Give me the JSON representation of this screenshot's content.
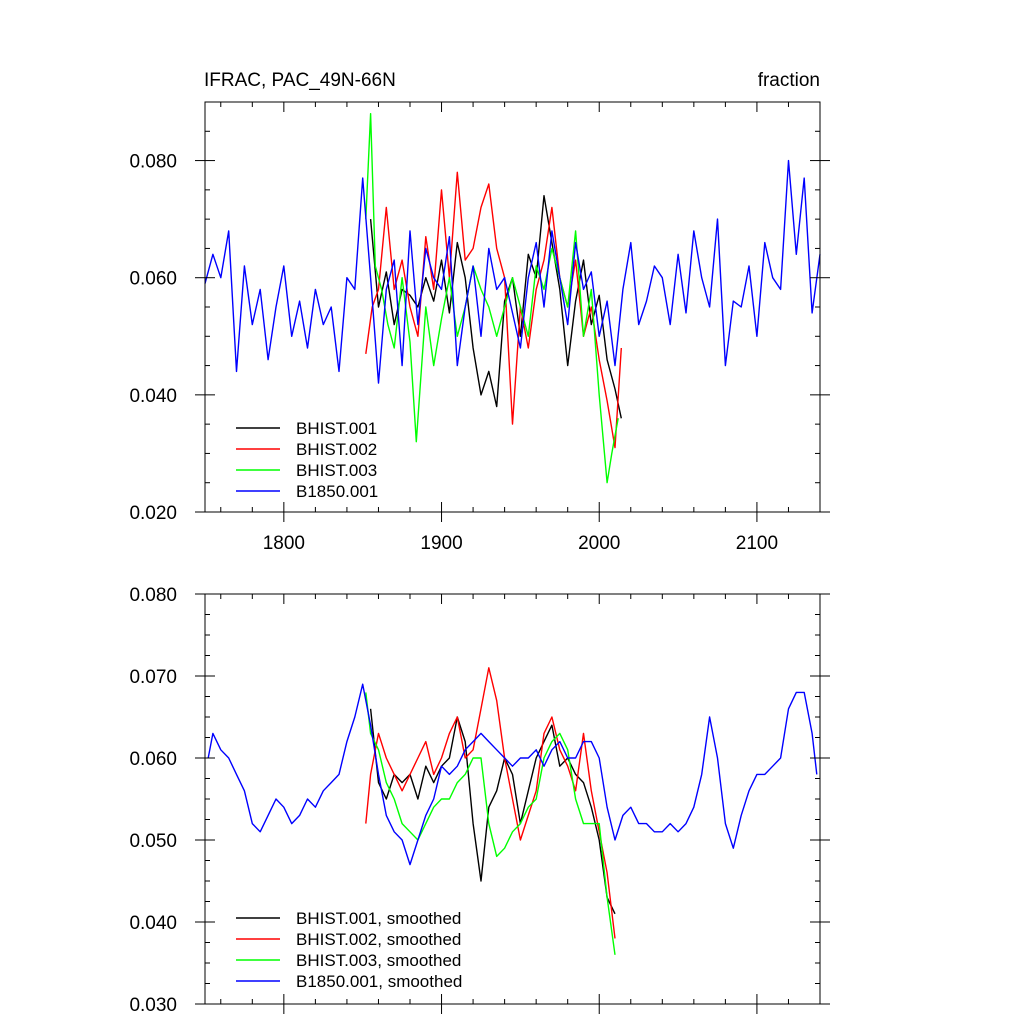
{
  "chart_data": [
    {
      "type": "line",
      "title": "IFRAC, PAC_49N-66N",
      "units": "fraction",
      "xlim": [
        1750,
        2140
      ],
      "ylim": [
        0.02,
        0.09
      ],
      "x_ticks": [
        1800,
        1900,
        2000,
        2100
      ],
      "x_tick_labels": [
        "1800",
        "1900",
        "2000",
        "2100"
      ],
      "y_ticks": [
        0.02,
        0.04,
        0.06,
        0.08
      ],
      "y_tick_labels": [
        "0.020",
        "0.040",
        "0.060",
        "0.080"
      ],
      "legend_position": "bottom-left",
      "series": [
        {
          "name": "BHIST.001",
          "color": "#000000",
          "x": [
            1855,
            1860,
            1865,
            1870,
            1875,
            1880,
            1885,
            1890,
            1895,
            1900,
            1905,
            1910,
            1915,
            1920,
            1925,
            1930,
            1935,
            1940,
            1945,
            1950,
            1955,
            1960,
            1965,
            1970,
            1975,
            1980,
            1985,
            1990,
            1995,
            2000,
            2005,
            2010,
            2014
          ],
          "y": [
            0.07,
            0.055,
            0.061,
            0.052,
            0.058,
            0.057,
            0.055,
            0.06,
            0.056,
            0.063,
            0.054,
            0.066,
            0.06,
            0.048,
            0.04,
            0.044,
            0.038,
            0.056,
            0.06,
            0.05,
            0.064,
            0.06,
            0.074,
            0.066,
            0.058,
            0.045,
            0.056,
            0.063,
            0.052,
            0.057,
            0.046,
            0.041,
            0.036
          ]
        },
        {
          "name": "BHIST.002",
          "color": "#ff0000",
          "x": [
            1852,
            1856,
            1860,
            1865,
            1870,
            1875,
            1880,
            1885,
            1890,
            1895,
            1900,
            1905,
            1910,
            1915,
            1920,
            1925,
            1930,
            1935,
            1940,
            1945,
            1950,
            1955,
            1960,
            1965,
            1970,
            1975,
            1980,
            1985,
            1990,
            1995,
            2000,
            2005,
            2010,
            2014
          ],
          "y": [
            0.047,
            0.055,
            0.058,
            0.072,
            0.058,
            0.063,
            0.055,
            0.05,
            0.067,
            0.058,
            0.075,
            0.06,
            0.078,
            0.063,
            0.065,
            0.072,
            0.076,
            0.065,
            0.06,
            0.035,
            0.055,
            0.048,
            0.058,
            0.063,
            0.072,
            0.06,
            0.055,
            0.063,
            0.05,
            0.055,
            0.046,
            0.039,
            0.031,
            0.048
          ]
        },
        {
          "name": "BHIST.003",
          "color": "#00ff00",
          "x": [
            1852,
            1855,
            1858,
            1862,
            1866,
            1870,
            1875,
            1880,
            1884,
            1890,
            1895,
            1900,
            1905,
            1910,
            1915,
            1920,
            1925,
            1930,
            1935,
            1940,
            1945,
            1950,
            1955,
            1960,
            1965,
            1970,
            1975,
            1980,
            1985,
            1990,
            1995,
            2000,
            2005,
            2008,
            2012
          ],
          "y": [
            0.07,
            0.088,
            0.062,
            0.058,
            0.052,
            0.048,
            0.06,
            0.049,
            0.032,
            0.055,
            0.045,
            0.053,
            0.06,
            0.05,
            0.055,
            0.062,
            0.058,
            0.055,
            0.05,
            0.055,
            0.06,
            0.055,
            0.05,
            0.062,
            0.058,
            0.065,
            0.06,
            0.055,
            0.068,
            0.05,
            0.058,
            0.04,
            0.025,
            0.03,
            0.036
          ]
        },
        {
          "name": "B1850.001",
          "color": "#0000ff",
          "x": [
            1750,
            1755,
            1760,
            1765,
            1770,
            1775,
            1780,
            1785,
            1790,
            1795,
            1800,
            1805,
            1810,
            1815,
            1820,
            1825,
            1830,
            1835,
            1840,
            1845,
            1850,
            1855,
            1860,
            1865,
            1870,
            1875,
            1880,
            1885,
            1890,
            1895,
            1900,
            1905,
            1910,
            1915,
            1920,
            1925,
            1930,
            1935,
            1940,
            1945,
            1950,
            1955,
            1960,
            1965,
            1970,
            1975,
            1980,
            1985,
            1990,
            1995,
            2000,
            2005,
            2010,
            2015,
            2020,
            2025,
            2030,
            2035,
            2040,
            2045,
            2050,
            2055,
            2060,
            2065,
            2070,
            2075,
            2080,
            2085,
            2090,
            2095,
            2100,
            2105,
            2110,
            2115,
            2120,
            2125,
            2130,
            2135,
            2140
          ],
          "y": [
            0.059,
            0.064,
            0.06,
            0.068,
            0.044,
            0.062,
            0.052,
            0.058,
            0.046,
            0.055,
            0.062,
            0.05,
            0.056,
            0.048,
            0.058,
            0.052,
            0.055,
            0.044,
            0.06,
            0.058,
            0.077,
            0.06,
            0.042,
            0.058,
            0.063,
            0.045,
            0.068,
            0.052,
            0.065,
            0.06,
            0.058,
            0.067,
            0.045,
            0.055,
            0.062,
            0.05,
            0.065,
            0.058,
            0.06,
            0.054,
            0.048,
            0.06,
            0.066,
            0.055,
            0.068,
            0.06,
            0.052,
            0.066,
            0.058,
            0.061,
            0.05,
            0.056,
            0.045,
            0.058,
            0.066,
            0.052,
            0.056,
            0.062,
            0.06,
            0.052,
            0.064,
            0.054,
            0.068,
            0.06,
            0.055,
            0.07,
            0.045,
            0.056,
            0.055,
            0.062,
            0.05,
            0.066,
            0.06,
            0.058,
            0.08,
            0.064,
            0.077,
            0.054,
            0.064
          ]
        }
      ]
    },
    {
      "type": "line",
      "xlim": [
        1750,
        2140
      ],
      "ylim": [
        0.03,
        0.08
      ],
      "x_ticks": [
        1800,
        1900,
        2000,
        2100
      ],
      "y_ticks": [
        0.03,
        0.04,
        0.05,
        0.06,
        0.07,
        0.08
      ],
      "y_tick_labels": [
        "0.030",
        "0.040",
        "0.050",
        "0.060",
        "0.070",
        "0.080"
      ],
      "legend_position": "bottom-left",
      "series": [
        {
          "name": "BHIST.001, smoothed",
          "color": "#000000",
          "x": [
            1855,
            1860,
            1865,
            1870,
            1875,
            1880,
            1885,
            1890,
            1895,
            1900,
            1905,
            1910,
            1915,
            1920,
            1925,
            1930,
            1935,
            1940,
            1945,
            1950,
            1955,
            1960,
            1965,
            1970,
            1975,
            1980,
            1985,
            1990,
            1995,
            2000,
            2005,
            2010
          ],
          "y": [
            0.066,
            0.057,
            0.055,
            0.058,
            0.057,
            0.058,
            0.055,
            0.059,
            0.057,
            0.059,
            0.06,
            0.065,
            0.062,
            0.052,
            0.045,
            0.054,
            0.056,
            0.06,
            0.058,
            0.052,
            0.056,
            0.06,
            0.062,
            0.064,
            0.059,
            0.06,
            0.058,
            0.057,
            0.054,
            0.05,
            0.043,
            0.041
          ]
        },
        {
          "name": "BHIST.002, smoothed",
          "color": "#ff0000",
          "x": [
            1852,
            1855,
            1860,
            1865,
            1870,
            1875,
            1880,
            1885,
            1890,
            1895,
            1900,
            1905,
            1910,
            1915,
            1920,
            1925,
            1930,
            1935,
            1940,
            1945,
            1950,
            1955,
            1960,
            1965,
            1970,
            1975,
            1980,
            1985,
            1990,
            1995,
            2000,
            2005,
            2010
          ],
          "y": [
            0.052,
            0.058,
            0.063,
            0.06,
            0.058,
            0.056,
            0.058,
            0.06,
            0.062,
            0.058,
            0.06,
            0.063,
            0.065,
            0.06,
            0.061,
            0.066,
            0.071,
            0.067,
            0.06,
            0.055,
            0.05,
            0.053,
            0.056,
            0.063,
            0.065,
            0.061,
            0.059,
            0.056,
            0.063,
            0.056,
            0.051,
            0.046,
            0.038
          ]
        },
        {
          "name": "BHIST.003, smoothed",
          "color": "#00ff00",
          "x": [
            1852,
            1855,
            1860,
            1865,
            1870,
            1875,
            1880,
            1885,
            1890,
            1895,
            1900,
            1905,
            1910,
            1915,
            1920,
            1925,
            1930,
            1935,
            1940,
            1945,
            1950,
            1955,
            1960,
            1965,
            1970,
            1975,
            1980,
            1985,
            1990,
            1995,
            2000,
            2005,
            2010
          ],
          "y": [
            0.068,
            0.063,
            0.061,
            0.057,
            0.055,
            0.052,
            0.051,
            0.05,
            0.052,
            0.054,
            0.055,
            0.055,
            0.057,
            0.058,
            0.06,
            0.06,
            0.052,
            0.048,
            0.049,
            0.051,
            0.052,
            0.054,
            0.055,
            0.06,
            0.062,
            0.063,
            0.061,
            0.055,
            0.052,
            0.052,
            0.052,
            0.043,
            0.036
          ]
        },
        {
          "name": "B1850.001, smoothed",
          "color": "#0000ff",
          "x": [
            1752,
            1755,
            1760,
            1765,
            1770,
            1775,
            1780,
            1785,
            1790,
            1795,
            1800,
            1805,
            1810,
            1815,
            1820,
            1825,
            1830,
            1835,
            1840,
            1845,
            1850,
            1855,
            1860,
            1865,
            1870,
            1875,
            1880,
            1885,
            1890,
            1895,
            1900,
            1905,
            1910,
            1915,
            1920,
            1925,
            1930,
            1935,
            1940,
            1945,
            1950,
            1955,
            1960,
            1965,
            1970,
            1975,
            1980,
            1985,
            1990,
            1995,
            2000,
            2005,
            2010,
            2015,
            2020,
            2025,
            2030,
            2035,
            2040,
            2045,
            2050,
            2055,
            2060,
            2065,
            2070,
            2075,
            2080,
            2085,
            2090,
            2095,
            2100,
            2105,
            2110,
            2115,
            2120,
            2125,
            2130,
            2135,
            2138
          ],
          "y": [
            0.06,
            0.063,
            0.061,
            0.06,
            0.058,
            0.056,
            0.052,
            0.051,
            0.053,
            0.055,
            0.054,
            0.052,
            0.053,
            0.055,
            0.054,
            0.056,
            0.057,
            0.058,
            0.062,
            0.065,
            0.069,
            0.064,
            0.058,
            0.053,
            0.051,
            0.05,
            0.047,
            0.05,
            0.053,
            0.055,
            0.059,
            0.058,
            0.059,
            0.061,
            0.062,
            0.063,
            0.062,
            0.061,
            0.06,
            0.059,
            0.06,
            0.06,
            0.061,
            0.059,
            0.061,
            0.062,
            0.06,
            0.06,
            0.062,
            0.062,
            0.06,
            0.054,
            0.05,
            0.053,
            0.054,
            0.052,
            0.052,
            0.051,
            0.051,
            0.052,
            0.051,
            0.052,
            0.054,
            0.058,
            0.065,
            0.06,
            0.052,
            0.049,
            0.053,
            0.056,
            0.058,
            0.058,
            0.059,
            0.06,
            0.066,
            0.068,
            0.068,
            0.063,
            0.058
          ]
        }
      ]
    }
  ]
}
